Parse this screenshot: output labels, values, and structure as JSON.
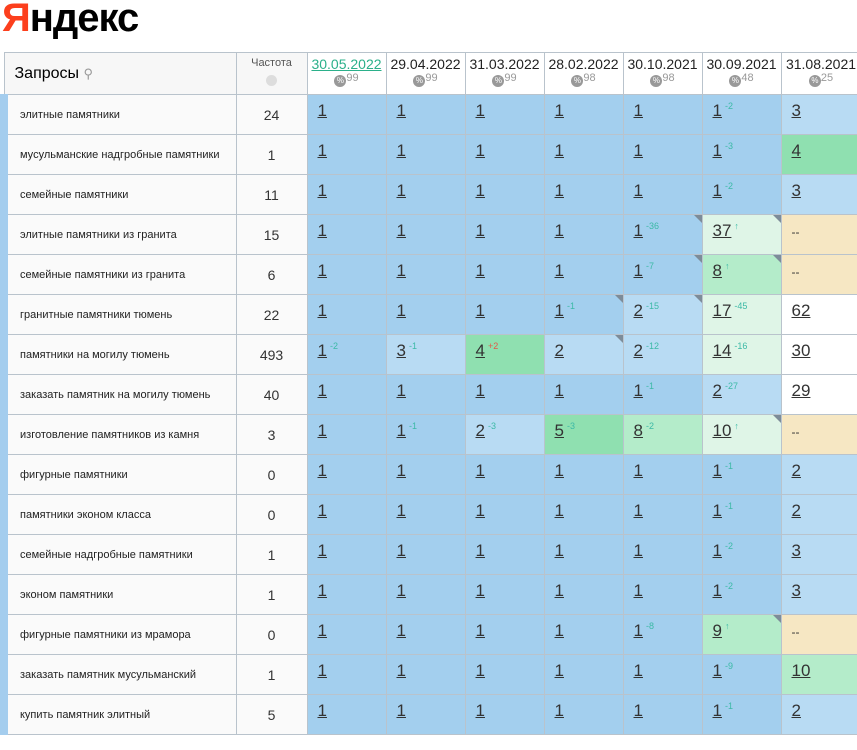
{
  "logo": "Яндекс",
  "header": {
    "query_label": "Запросы",
    "freq_label": "Частота",
    "dates": [
      {
        "date": "30.05.2022",
        "pct": "99"
      },
      {
        "date": "29.04.2022",
        "pct": "99"
      },
      {
        "date": "31.03.2022",
        "pct": "99"
      },
      {
        "date": "28.02.2022",
        "pct": "98"
      },
      {
        "date": "30.10.2021",
        "pct": "98"
      },
      {
        "date": "30.09.2021",
        "pct": "48"
      },
      {
        "date": "31.08.2021",
        "pct": "25"
      }
    ]
  },
  "colors": {
    "d": "#a3cfee",
    "l": "#b8dbf3",
    "g": "#8fe0b0",
    "lg": "#b4ecca",
    "vg": "#dff5e7",
    "b": "#f6e7c3",
    "w": "#ffffff"
  },
  "rows": [
    {
      "q": "элитные памятники",
      "f": "24",
      "cells": [
        [
          "1",
          "",
          "d"
        ],
        [
          "1",
          "",
          "d"
        ],
        [
          "1",
          "",
          "d"
        ],
        [
          "1",
          "",
          "d"
        ],
        [
          "1",
          "",
          "d"
        ],
        [
          "1",
          "-2",
          "d"
        ],
        [
          "3",
          "",
          "l"
        ]
      ]
    },
    {
      "q": "мусульманские надгробные памятники",
      "f": "1",
      "cells": [
        [
          "1",
          "",
          "d"
        ],
        [
          "1",
          "",
          "d"
        ],
        [
          "1",
          "",
          "d"
        ],
        [
          "1",
          "",
          "d"
        ],
        [
          "1",
          "",
          "d"
        ],
        [
          "1",
          "-3",
          "d"
        ],
        [
          "4",
          "",
          "g"
        ]
      ]
    },
    {
      "q": "семейные памятники",
      "f": "11",
      "cells": [
        [
          "1",
          "",
          "d"
        ],
        [
          "1",
          "",
          "d"
        ],
        [
          "1",
          "",
          "d"
        ],
        [
          "1",
          "",
          "d"
        ],
        [
          "1",
          "",
          "d"
        ],
        [
          "1",
          "-2",
          "d"
        ],
        [
          "3",
          "",
          "l"
        ]
      ]
    },
    {
      "q": "элитные памятники из гранита",
      "f": "15",
      "cells": [
        [
          "1",
          "",
          "d"
        ],
        [
          "1",
          "",
          "d"
        ],
        [
          "1",
          "",
          "d"
        ],
        [
          "1",
          "",
          "d"
        ],
        [
          "1",
          "-36",
          "d",
          1
        ],
        [
          "37",
          "↑",
          "vg",
          1
        ],
        [
          "--",
          "",
          "b"
        ]
      ]
    },
    {
      "q": "семейные памятники из гранита",
      "f": "6",
      "cells": [
        [
          "1",
          "",
          "d"
        ],
        [
          "1",
          "",
          "d"
        ],
        [
          "1",
          "",
          "d"
        ],
        [
          "1",
          "",
          "d"
        ],
        [
          "1",
          "-7",
          "d",
          1
        ],
        [
          "8",
          "↑",
          "lg",
          1
        ],
        [
          "--",
          "",
          "b"
        ]
      ]
    },
    {
      "q": "гранитные памятники тюмень",
      "f": "22",
      "cells": [
        [
          "1",
          "",
          "d"
        ],
        [
          "1",
          "",
          "d"
        ],
        [
          "1",
          "",
          "d"
        ],
        [
          "1",
          "-1",
          "d",
          1
        ],
        [
          "2",
          "-15",
          "l",
          1
        ],
        [
          "17",
          "-45",
          "vg"
        ],
        [
          "62",
          "",
          "w"
        ]
      ]
    },
    {
      "q": "памятники на могилу тюмень",
      "f": "493",
      "cells": [
        [
          "1",
          "-2",
          "d"
        ],
        [
          "3",
          "-1",
          "l"
        ],
        [
          "4",
          "+2",
          "g",
          0,
          1
        ],
        [
          "2",
          "",
          "l",
          1
        ],
        [
          "2",
          "-12",
          "l"
        ],
        [
          "14",
          "-16",
          "vg"
        ],
        [
          "30",
          "",
          "w"
        ]
      ]
    },
    {
      "q": "заказать памятник на могилу тюмень",
      "f": "40",
      "cells": [
        [
          "1",
          "",
          "d"
        ],
        [
          "1",
          "",
          "d"
        ],
        [
          "1",
          "",
          "d"
        ],
        [
          "1",
          "",
          "d"
        ],
        [
          "1",
          "-1",
          "d"
        ],
        [
          "2",
          "-27",
          "l"
        ],
        [
          "29",
          "",
          "w"
        ]
      ]
    },
    {
      "q": "изготовление памятников из камня",
      "f": "3",
      "cells": [
        [
          "1",
          "",
          "d"
        ],
        [
          "1",
          "-1",
          "d"
        ],
        [
          "2",
          "-3",
          "l"
        ],
        [
          "5",
          "-3",
          "g"
        ],
        [
          "8",
          "-2",
          "lg"
        ],
        [
          "10",
          "↑",
          "vg",
          1
        ],
        [
          "--",
          "",
          "b"
        ]
      ]
    },
    {
      "q": "фигурные памятники",
      "f": "0",
      "cells": [
        [
          "1",
          "",
          "d"
        ],
        [
          "1",
          "",
          "d"
        ],
        [
          "1",
          "",
          "d"
        ],
        [
          "1",
          "",
          "d"
        ],
        [
          "1",
          "",
          "d"
        ],
        [
          "1",
          "-1",
          "d"
        ],
        [
          "2",
          "",
          "l"
        ]
      ]
    },
    {
      "q": "памятники эконом класса",
      "f": "0",
      "cells": [
        [
          "1",
          "",
          "d"
        ],
        [
          "1",
          "",
          "d"
        ],
        [
          "1",
          "",
          "d"
        ],
        [
          "1",
          "",
          "d"
        ],
        [
          "1",
          "",
          "d"
        ],
        [
          "1",
          "-1",
          "d"
        ],
        [
          "2",
          "",
          "l"
        ]
      ]
    },
    {
      "q": "семейные надгробные памятники",
      "f": "1",
      "cells": [
        [
          "1",
          "",
          "d"
        ],
        [
          "1",
          "",
          "d"
        ],
        [
          "1",
          "",
          "d"
        ],
        [
          "1",
          "",
          "d"
        ],
        [
          "1",
          "",
          "d"
        ],
        [
          "1",
          "-2",
          "d"
        ],
        [
          "3",
          "",
          "l"
        ]
      ]
    },
    {
      "q": "эконом памятники",
      "f": "1",
      "cells": [
        [
          "1",
          "",
          "d"
        ],
        [
          "1",
          "",
          "d"
        ],
        [
          "1",
          "",
          "d"
        ],
        [
          "1",
          "",
          "d"
        ],
        [
          "1",
          "",
          "d"
        ],
        [
          "1",
          "-2",
          "d"
        ],
        [
          "3",
          "",
          "l"
        ]
      ]
    },
    {
      "q": "фигурные памятники из мрамора",
      "f": "0",
      "cells": [
        [
          "1",
          "",
          "d"
        ],
        [
          "1",
          "",
          "d"
        ],
        [
          "1",
          "",
          "d"
        ],
        [
          "1",
          "",
          "d"
        ],
        [
          "1",
          "-8",
          "d"
        ],
        [
          "9",
          "↑",
          "lg",
          1
        ],
        [
          "--",
          "",
          "b"
        ]
      ]
    },
    {
      "q": "заказать памятник мусульманский",
      "f": "1",
      "cells": [
        [
          "1",
          "",
          "d"
        ],
        [
          "1",
          "",
          "d"
        ],
        [
          "1",
          "",
          "d"
        ],
        [
          "1",
          "",
          "d"
        ],
        [
          "1",
          "",
          "d"
        ],
        [
          "1",
          "-9",
          "d"
        ],
        [
          "10",
          "",
          "lg"
        ]
      ]
    },
    {
      "q": "купить памятник элитный",
      "f": "5",
      "cells": [
        [
          "1",
          "",
          "d"
        ],
        [
          "1",
          "",
          "d"
        ],
        [
          "1",
          "",
          "d"
        ],
        [
          "1",
          "",
          "d"
        ],
        [
          "1",
          "",
          "d"
        ],
        [
          "1",
          "-1",
          "d"
        ],
        [
          "2",
          "",
          "l"
        ]
      ]
    }
  ]
}
